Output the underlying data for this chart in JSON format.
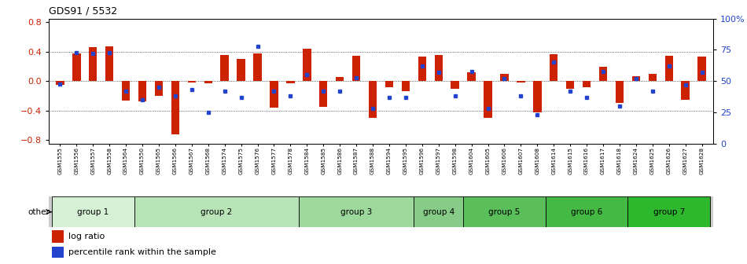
{
  "title": "GDS91 / 5532",
  "samples": [
    "GSM1555",
    "GSM1556",
    "GSM1557",
    "GSM1558",
    "GSM1564",
    "GSM1550",
    "GSM1565",
    "GSM1566",
    "GSM1567",
    "GSM1568",
    "GSM1574",
    "GSM1575",
    "GSM1576",
    "GSM1577",
    "GSM1578",
    "GSM1584",
    "GSM1585",
    "GSM1586",
    "GSM1587",
    "GSM1588",
    "GSM1594",
    "GSM1595",
    "GSM1596",
    "GSM1597",
    "GSM1598",
    "GSM1604",
    "GSM1605",
    "GSM1606",
    "GSM1607",
    "GSM1608",
    "GSM1614",
    "GSM1615",
    "GSM1616",
    "GSM1617",
    "GSM1618",
    "GSM1624",
    "GSM1625",
    "GSM1626",
    "GSM1627",
    "GSM1628"
  ],
  "log_ratio": [
    -0.05,
    0.38,
    0.46,
    0.47,
    -0.26,
    -0.27,
    -0.2,
    -0.72,
    -0.02,
    -0.03,
    0.35,
    0.3,
    0.38,
    -0.36,
    -0.03,
    0.44,
    -0.35,
    0.06,
    0.34,
    -0.5,
    -0.08,
    -0.14,
    0.33,
    0.35,
    -0.1,
    0.12,
    -0.5,
    0.1,
    -0.02,
    -0.42,
    0.37,
    -0.1,
    -0.08,
    0.2,
    -0.3,
    0.07,
    0.1,
    0.34,
    -0.25,
    0.33
  ],
  "percentile": [
    48,
    73,
    72,
    73,
    42,
    35,
    45,
    38,
    43,
    25,
    42,
    37,
    78,
    42,
    38,
    55,
    42,
    42,
    53,
    28,
    37,
    37,
    62,
    57,
    38,
    58,
    28,
    52,
    38,
    23,
    65,
    42,
    37,
    58,
    30,
    52,
    42,
    62,
    47,
    57
  ],
  "group_defs": [
    {
      "name": "group 1",
      "start": 0,
      "end": 4,
      "color": "#d6f0d6"
    },
    {
      "name": "group 2",
      "start": 5,
      "end": 14,
      "color": "#b8e4b8"
    },
    {
      "name": "group 3",
      "start": 15,
      "end": 21,
      "color": "#9dd89d"
    },
    {
      "name": "group 4",
      "start": 22,
      "end": 24,
      "color": "#86cc86"
    },
    {
      "name": "group 5",
      "start": 25,
      "end": 29,
      "color": "#5abf5a"
    },
    {
      "name": "group 6",
      "start": 30,
      "end": 34,
      "color": "#44b944"
    },
    {
      "name": "group 7",
      "start": 35,
      "end": 39,
      "color": "#2db82d"
    }
  ],
  "bar_color": "#cc2200",
  "dot_color": "#2244cc",
  "ylim_left": [
    -0.85,
    0.85
  ],
  "ylim_right": [
    0,
    100
  ],
  "yticks_left": [
    -0.8,
    -0.4,
    0.0,
    0.4,
    0.8
  ],
  "yticks_right": [
    0,
    25,
    50,
    75,
    100
  ],
  "grid_values": [
    -0.4,
    0.0,
    0.4
  ],
  "bg_color": "#ffffff",
  "plot_bg": "#ffffff"
}
